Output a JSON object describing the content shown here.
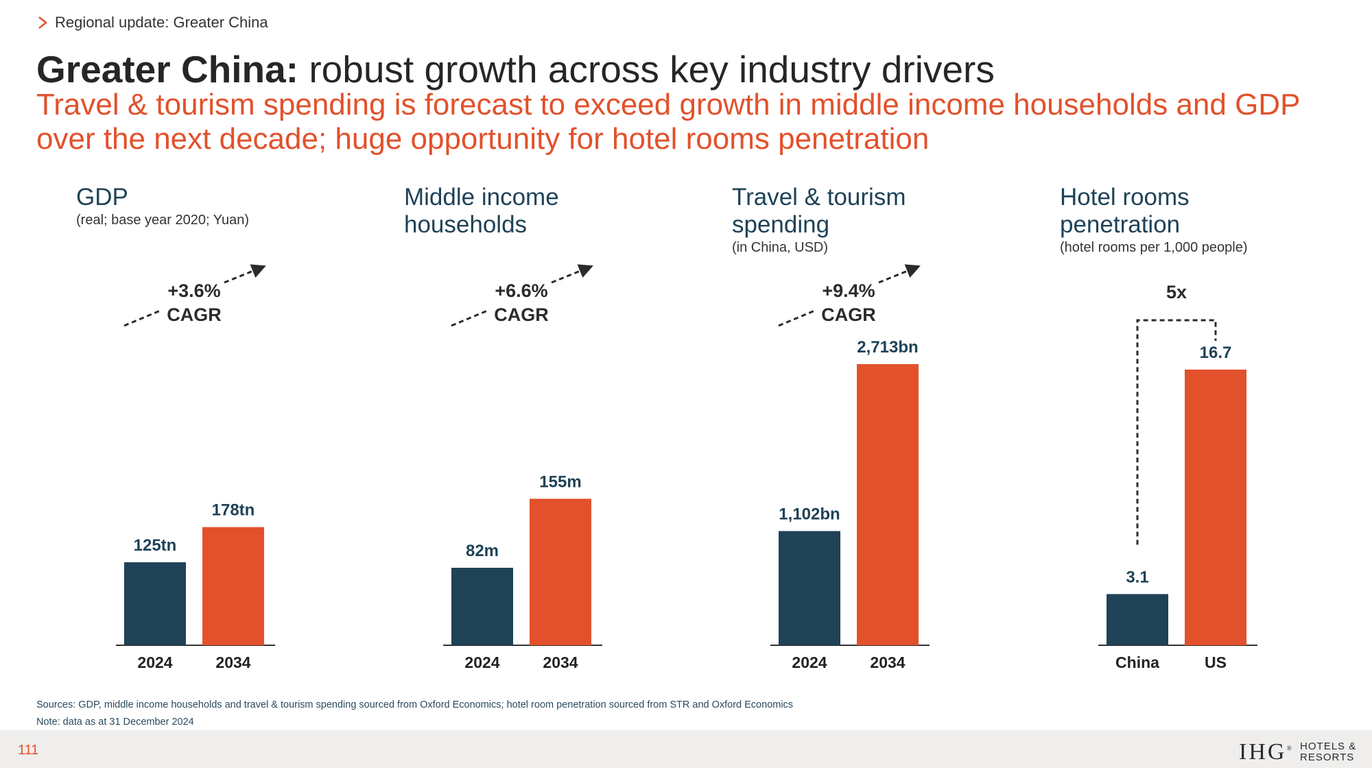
{
  "header": {
    "breadcrumb": "Regional update: Greater China",
    "title_bold": "Greater China:",
    "title_rest": " robust growth across key industry drivers",
    "subtitle": "Travel & tourism spending is forecast to exceed growth in middle income households and GDP over the next decade; huge opportunity for hotel rooms penetration"
  },
  "colors": {
    "navy": "#1f4257",
    "orange": "#e2512b"
  },
  "panels": [
    {
      "title": "GDP",
      "subtitle": "(real; base year 2020; Yuan)"
    },
    {
      "title": "Middle income households",
      "subtitle": ""
    },
    {
      "title": "Travel & tourism spending",
      "subtitle": "(in China, USD)"
    },
    {
      "title": "Hotel rooms penetration",
      "subtitle": "(hotel rooms per 1,000 people)"
    }
  ],
  "chart_data": [
    {
      "type": "bar",
      "title": "GDP",
      "categories": [
        "2024",
        "2034"
      ],
      "values": [
        125,
        178
      ],
      "value_labels": [
        "125tn",
        "178tn"
      ],
      "units": "trillion Yuan",
      "annotation": [
        "+3.6%",
        "CAGR"
      ]
    },
    {
      "type": "bar",
      "title": "Middle income households",
      "categories": [
        "2024",
        "2034"
      ],
      "values": [
        82,
        155
      ],
      "value_labels": [
        "82m",
        "155m"
      ],
      "units": "million",
      "annotation": [
        "+6.6%",
        "CAGR"
      ]
    },
    {
      "type": "bar",
      "title": "Travel & tourism spending",
      "categories": [
        "2024",
        "2034"
      ],
      "values": [
        1102,
        2713
      ],
      "value_labels": [
        "1,102bn",
        "2,713bn"
      ],
      "units": "billion USD",
      "annotation": [
        "+9.4%",
        "CAGR"
      ]
    },
    {
      "type": "bar",
      "title": "Hotel rooms penetration",
      "categories": [
        "China",
        "US"
      ],
      "values": [
        3.1,
        16.7
      ],
      "value_labels": [
        "3.1",
        "16.7"
      ],
      "units": "hotel rooms per 1,000 people",
      "annotation": [
        "5x"
      ]
    }
  ],
  "footer": {
    "sources": "Sources: GDP, middle income households and travel & tourism spending sourced from Oxford Economics; hotel room penetration sourced from STR and Oxford Economics",
    "note": "Note: data as at 31 December 2024",
    "page_number": "111",
    "logo_text": "IHG",
    "logo_reg": "®",
    "logo_sub1": "HOTELS &",
    "logo_sub2": "RESORTS"
  }
}
